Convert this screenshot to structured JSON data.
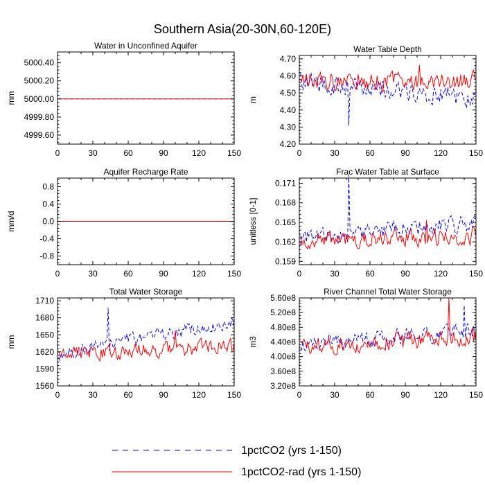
{
  "figure": {
    "title": "Southern Asia(20-30N,60-120E)",
    "legend": [
      {
        "label": "1pctCO2 (yrs 1-150)",
        "color": "#0000ff",
        "style": "dashed"
      },
      {
        "label": "1pctCO2-rad (yrs 1-150)",
        "color": "#ff0000",
        "style": "solid"
      }
    ]
  },
  "chart_data": [
    {
      "type": "line",
      "title": "Water in Unconfined Aquifer",
      "ylabel": "mm",
      "xlim": [
        0,
        150
      ],
      "ylim": [
        4999.5,
        5000.52
      ],
      "xticks": [
        0,
        30,
        60,
        90,
        120,
        150
      ],
      "yticks": [
        4999.6,
        4999.8,
        5000.0,
        5000.2,
        5000.4
      ],
      "yticklabels": [
        "4999.60",
        "4999.80",
        "5000.00",
        "5000.20",
        "5000.40"
      ],
      "series": [
        {
          "name": "1pctCO2 (yrs 1-150)",
          "color": "#0000ff",
          "dash": true,
          "base": 5000.0,
          "amp": 0,
          "spike": 0
        },
        {
          "name": "1pctCO2-rad (yrs 1-150)",
          "color": "#ff0000",
          "dash": false,
          "base": 5000.0,
          "amp": 0,
          "spike": 0
        }
      ]
    },
    {
      "type": "line",
      "title": "Water Table Depth",
      "ylabel": "m",
      "xlim": [
        0,
        150
      ],
      "ylim": [
        4.2,
        4.72
      ],
      "xticks": [
        0,
        30,
        60,
        90,
        120,
        150
      ],
      "yticks": [
        4.2,
        4.3,
        4.4,
        4.5,
        4.6,
        4.7
      ],
      "yticklabels": [
        "4.20",
        "4.30",
        "4.40",
        "4.50",
        "4.60",
        "4.70"
      ],
      "series": [
        {
          "name": "1pctCO2 (yrs 1-150)",
          "color": "#0000ff",
          "dash": true,
          "base": 4.57,
          "trend": -0.1,
          "amp": 0.05,
          "spike": -0.28,
          "spikeAt": 42
        },
        {
          "name": "1pctCO2-rad (yrs 1-150)",
          "color": "#ff0000",
          "dash": false,
          "base": 4.57,
          "trend": 0.0,
          "amp": 0.05,
          "spike": 0.11,
          "spikeAt": 102
        }
      ]
    },
    {
      "type": "line",
      "title": "Aquifer Recharge Rate",
      "ylabel": "mm/d",
      "xlim": [
        0,
        150
      ],
      "ylim": [
        -1.0,
        1.0
      ],
      "xticks": [
        0,
        30,
        60,
        90,
        120,
        150
      ],
      "yticks": [
        -0.8,
        -0.4,
        0.0,
        0.4,
        0.8
      ],
      "yticklabels": [
        "-0.8",
        "-0.4",
        "0.0",
        "0.4",
        "0.8"
      ],
      "series": [
        {
          "name": "1pctCO2 (yrs 1-150)",
          "color": "#0000ff",
          "dash": true,
          "base": 0.0,
          "amp": 0,
          "spike": 0
        },
        {
          "name": "1pctCO2-rad (yrs 1-150)",
          "color": "#ff0000",
          "dash": false,
          "base": 0.0,
          "amp": 0,
          "spike": 0
        }
      ]
    },
    {
      "type": "line",
      "title": "Frac Water Table at Surface",
      "ylabel": "unitless [0-1]",
      "xlim": [
        0,
        150
      ],
      "ylim": [
        0.1585,
        0.1718
      ],
      "xticks": [
        0,
        30,
        60,
        90,
        120,
        150
      ],
      "yticks": [
        0.159,
        0.162,
        0.165,
        0.168,
        0.171
      ],
      "yticklabels": [
        "0.159",
        "0.162",
        "0.165",
        "0.168",
        "0.171"
      ],
      "series": [
        {
          "name": "1pctCO2 (yrs 1-150)",
          "color": "#0000ff",
          "dash": true,
          "base": 0.1625,
          "trend": 0.0025,
          "amp": 0.0012,
          "spike": 0.0087,
          "spikeAt": 42
        },
        {
          "name": "1pctCO2-rad (yrs 1-150)",
          "color": "#ff0000",
          "dash": false,
          "base": 0.1625,
          "trend": 0.0003,
          "amp": 0.0012,
          "spike": 0.004,
          "spikeAt": 108
        }
      ]
    },
    {
      "type": "line",
      "title": "Total Water Storage",
      "ylabel": "mm",
      "xlim": [
        0,
        150
      ],
      "ylim": [
        1560,
        1715
      ],
      "xticks": [
        0,
        30,
        60,
        90,
        120,
        150
      ],
      "yticks": [
        1560,
        1590,
        1620,
        1650,
        1680,
        1710
      ],
      "yticklabels": [
        "1560",
        "1590",
        "1620",
        "1650",
        "1680",
        "1710"
      ],
      "series": [
        {
          "name": "1pctCO2 (yrs 1-150)",
          "color": "#0000ff",
          "dash": true,
          "base": 1618,
          "trend": 55,
          "amp": 11,
          "spike": 70,
          "spikeAt": 43
        },
        {
          "name": "1pctCO2-rad (yrs 1-150)",
          "color": "#ff0000",
          "dash": false,
          "base": 1615,
          "trend": 15,
          "amp": 12,
          "spike": 40,
          "spikeAt": 100
        }
      ]
    },
    {
      "type": "line",
      "title": "River Channel Total Water Storage",
      "ylabel": "m3",
      "xlim": [
        0,
        150
      ],
      "ylim": [
        320000000,
        560000000
      ],
      "xticks": [
        0,
        30,
        60,
        90,
        120,
        150
      ],
      "yticks": [
        320000000,
        360000000,
        400000000,
        440000000,
        480000000,
        520000000,
        560000000
      ],
      "yticklabels": [
        "3.20e8",
        "3.60e8",
        "4.00e8",
        "4.40e8",
        "4.80e8",
        "5.20e8",
        "5.60e8"
      ],
      "series": [
        {
          "name": "1pctCO2 (yrs 1-150)",
          "color": "#0000ff",
          "dash": true,
          "base": 430000000,
          "trend": 40000000,
          "amp": 20000000,
          "spike": 70000000,
          "spikeAt": 140
        },
        {
          "name": "1pctCO2-rad (yrs 1-150)",
          "color": "#ff0000",
          "dash": false,
          "base": 428000000,
          "trend": 25000000,
          "amp": 22000000,
          "spike": 100000000,
          "spikeAt": 127
        }
      ]
    }
  ]
}
